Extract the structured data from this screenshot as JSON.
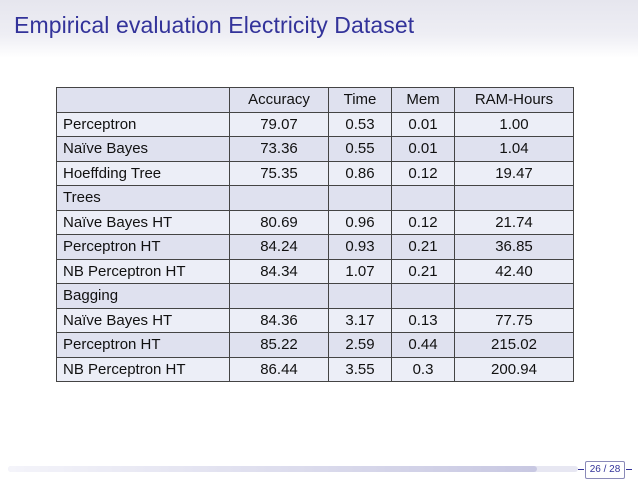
{
  "slide": {
    "title": "Empirical evaluation Electricity Dataset"
  },
  "table": {
    "headers": [
      "",
      "Accuracy",
      "Time",
      "Mem",
      "RAM-Hours"
    ],
    "rows": [
      {
        "type": "data",
        "label": "Perceptron",
        "values": [
          "79.07",
          "0.53",
          "0.01",
          "1.00"
        ]
      },
      {
        "type": "data",
        "label": "Naïve Bayes",
        "values": [
          "73.36",
          "0.55",
          "0.01",
          "1.04"
        ]
      },
      {
        "type": "data",
        "label": "Hoeffding Tree",
        "values": [
          "75.35",
          "0.86",
          "0.12",
          "19.47"
        ]
      },
      {
        "type": "section",
        "label": "Trees"
      },
      {
        "type": "data",
        "label": "Naïve Bayes HT",
        "values": [
          "80.69",
          "0.96",
          "0.12",
          "21.74"
        ]
      },
      {
        "type": "data",
        "label": "Perceptron HT",
        "values": [
          "84.24",
          "0.93",
          "0.21",
          "36.85"
        ]
      },
      {
        "type": "data",
        "label": "NB Perceptron HT",
        "values": [
          "84.34",
          "1.07",
          "0.21",
          "42.40"
        ]
      },
      {
        "type": "section",
        "label": "Bagging"
      },
      {
        "type": "data",
        "label": "Naïve Bayes HT",
        "values": [
          "84.36",
          "3.17",
          "0.13",
          "77.75"
        ]
      },
      {
        "type": "data",
        "label": "Perceptron HT",
        "values": [
          "85.22",
          "2.59",
          "0.44",
          "215.02"
        ]
      },
      {
        "type": "data",
        "label": "NB Perceptron HT",
        "values": [
          "86.44",
          "3.55",
          "0.3",
          "200.94"
        ]
      }
    ]
  },
  "footer": {
    "page_indicator": "26 / 28",
    "progress_fraction": 0.9286
  },
  "colors": {
    "title": "#33339a",
    "row_dark": "#dfe1ef",
    "row_light": "#eceef7"
  }
}
